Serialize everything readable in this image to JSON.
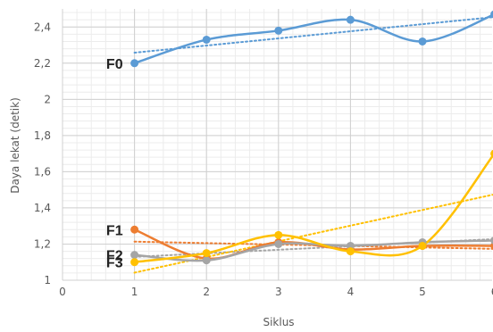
{
  "chart_data": {
    "type": "line",
    "xlabel": "Siklus",
    "ylabel": "Daya lekat (detik)",
    "xlim": [
      0,
      6
    ],
    "ylim": [
      1,
      2.5
    ],
    "x_ticks": [
      "0",
      "1",
      "2",
      "3",
      "4",
      "5",
      "6"
    ],
    "y_ticks": [
      "1",
      "1,2",
      "1,4",
      "1,6",
      "1,8",
      "2",
      "2,2",
      "2,4"
    ],
    "grid": true,
    "smoothed": true,
    "trendlines": true,
    "series": [
      {
        "name": "F0",
        "color": "#5b9bd5",
        "x": [
          1,
          2,
          3,
          4,
          5,
          6
        ],
        "y": [
          2.2,
          2.33,
          2.38,
          2.44,
          2.32,
          2.47
        ]
      },
      {
        "name": "F1",
        "color": "#ed7d31",
        "x": [
          1,
          2,
          3,
          4,
          5,
          6
        ],
        "y": [
          1.28,
          1.12,
          1.21,
          1.17,
          1.19,
          1.19
        ]
      },
      {
        "name": "F2",
        "color": "#a5a5a5",
        "x": [
          1,
          2,
          3,
          4,
          5,
          6
        ],
        "y": [
          1.14,
          1.11,
          1.2,
          1.19,
          1.21,
          1.22
        ]
      },
      {
        "name": "F3",
        "color": "#ffc000",
        "x": [
          1,
          2,
          3,
          4,
          5,
          6
        ],
        "y": [
          1.1,
          1.15,
          1.25,
          1.16,
          1.19,
          1.7
        ]
      }
    ]
  }
}
